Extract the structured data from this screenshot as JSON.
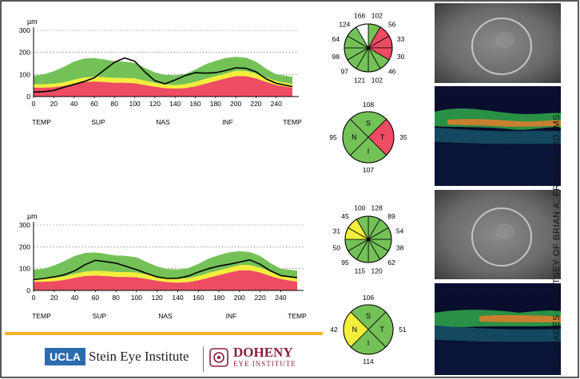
{
  "credit": "ALL IMAGES COURTSEY OF BRIAN A. FRANCIS, MD, MS",
  "logos": {
    "ucla": "UCLA",
    "stein": "Stein Eye Institute",
    "doheny": "DOHENY",
    "doheny_sub": "EYE INSTITUTE"
  },
  "colors": {
    "normal": "#74c158",
    "borderline": "#f2ee3a",
    "outside": "#ee4c63",
    "patient_line": "#000000",
    "accent_rule": "#f5b428",
    "frame": "#222222"
  },
  "chart_data": [
    {
      "type": "area",
      "panel": "top",
      "ylabel": "µm",
      "ylim": [
        0,
        300
      ],
      "yticks": [
        "0",
        "100",
        "200",
        "300"
      ],
      "xlim": [
        0,
        256
      ],
      "xticks": [
        "0",
        "20",
        "40",
        "60",
        "80",
        "100",
        "120",
        "140",
        "160",
        "180",
        "200",
        "220",
        "240"
      ],
      "regions": [
        "TEMP",
        "SUP",
        "NAS",
        "INF",
        "TEMP"
      ],
      "grid": true,
      "x": [
        0,
        10,
        20,
        30,
        40,
        50,
        60,
        70,
        80,
        90,
        100,
        110,
        120,
        130,
        140,
        150,
        160,
        170,
        180,
        190,
        200,
        210,
        220,
        230,
        240,
        256
      ],
      "bands": {
        "red_top": [
          40,
          40,
          42,
          48,
          58,
          66,
          68,
          66,
          62,
          62,
          60,
          52,
          44,
          38,
          36,
          38,
          46,
          58,
          70,
          82,
          92,
          92,
          82,
          66,
          52,
          40
        ],
        "yellow_top": [
          56,
          55,
          58,
          64,
          76,
          86,
          90,
          88,
          84,
          84,
          82,
          72,
          62,
          54,
          52,
          56,
          66,
          80,
          92,
          104,
          116,
          116,
          104,
          86,
          70,
          56
        ],
        "green_top": [
          95,
          100,
          115,
          135,
          158,
          172,
          174,
          168,
          160,
          158,
          152,
          130,
          110,
          98,
          96,
          102,
          122,
          146,
          162,
          175,
          180,
          176,
          158,
          126,
          100,
          90
        ]
      },
      "patient": [
        20,
        22,
        28,
        42,
        55,
        68,
        85,
        120,
        155,
        175,
        160,
        112,
        72,
        58,
        75,
        95,
        108,
        106,
        108,
        118,
        130,
        128,
        112,
        80,
        60,
        45
      ]
    },
    {
      "type": "area",
      "panel": "bottom",
      "ylabel": "µm",
      "ylim": [
        0,
        300
      ],
      "yticks": [
        "0",
        "100",
        "200",
        "300"
      ],
      "xlim": [
        0,
        256
      ],
      "xticks": [
        "0",
        "20",
        "40",
        "60",
        "80",
        "100",
        "120",
        "140",
        "160",
        "180",
        "200",
        "220",
        "240"
      ],
      "regions": [
        "TEMP",
        "SUP",
        "NAS",
        "INF",
        "TEMP"
      ],
      "grid": true,
      "x": [
        0,
        10,
        20,
        30,
        40,
        50,
        60,
        70,
        80,
        90,
        100,
        110,
        120,
        130,
        140,
        150,
        160,
        170,
        180,
        190,
        200,
        210,
        220,
        230,
        240,
        256
      ],
      "bands": {
        "red_top": [
          40,
          40,
          42,
          48,
          58,
          66,
          68,
          66,
          62,
          62,
          60,
          52,
          44,
          38,
          36,
          38,
          46,
          58,
          70,
          82,
          92,
          92,
          82,
          66,
          52,
          40
        ],
        "yellow_top": [
          56,
          55,
          58,
          64,
          76,
          86,
          90,
          88,
          84,
          84,
          82,
          72,
          62,
          54,
          52,
          56,
          66,
          80,
          92,
          104,
          116,
          116,
          104,
          86,
          70,
          56
        ],
        "green_top": [
          95,
          100,
          115,
          135,
          158,
          172,
          174,
          168,
          160,
          158,
          152,
          130,
          110,
          98,
          96,
          102,
          122,
          146,
          162,
          175,
          180,
          176,
          158,
          126,
          100,
          90
        ]
      },
      "patient": [
        50,
        55,
        62,
        72,
        90,
        118,
        138,
        132,
        125,
        110,
        95,
        78,
        62,
        55,
        56,
        66,
        84,
        100,
        112,
        120,
        130,
        140,
        120,
        90,
        68,
        58
      ]
    }
  ],
  "clock_charts": [
    {
      "panel": "top",
      "values": [
        "102",
        "56",
        "33",
        "30",
        "46",
        "102",
        "121",
        "97",
        "98",
        "64",
        "124",
        "166"
      ],
      "status": [
        "normal",
        "outside",
        "outside",
        "outside",
        "normal",
        "normal",
        "normal",
        "normal",
        "normal",
        "normal",
        "normal",
        "none"
      ]
    },
    {
      "panel": "bottom",
      "values": [
        "128",
        "89",
        "54",
        "38",
        "62",
        "120",
        "115",
        "95",
        "50",
        "31",
        "45",
        "100"
      ],
      "status": [
        "normal",
        "normal",
        "normal",
        "normal",
        "normal",
        "normal",
        "normal",
        "normal",
        "normal",
        "borderline",
        "borderline",
        "normal"
      ]
    }
  ],
  "quadrant_charts": [
    {
      "panel": "top",
      "letters": {
        "S": "S",
        "T": "T",
        "I": "I",
        "N": "N"
      },
      "values": {
        "S": "108",
        "T": "35",
        "I": "107",
        "N": "95"
      },
      "status": {
        "S": "normal",
        "T": "outside",
        "I": "normal",
        "N": "normal"
      }
    },
    {
      "panel": "bottom",
      "letters": {
        "S": "S",
        "T": "T",
        "I": "I",
        "N": "N"
      },
      "values": {
        "S": "106",
        "T": "51",
        "I": "114",
        "N": "42"
      },
      "status": {
        "S": "normal",
        "T": "normal",
        "I": "normal",
        "N": "borderline"
      }
    }
  ]
}
